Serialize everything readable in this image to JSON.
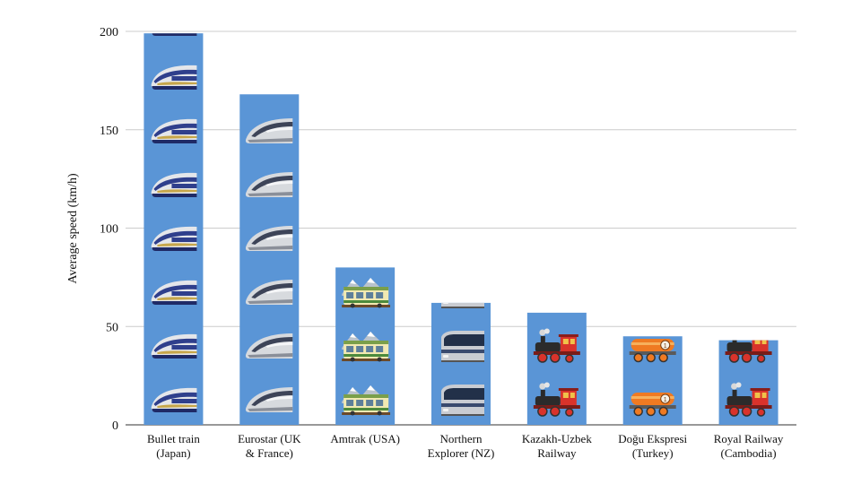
{
  "chart_data": {
    "type": "bar",
    "title": "",
    "xlabel": "",
    "ylabel": "Average speed (km/h)",
    "ylim": [
      0,
      200
    ],
    "yticks": [
      0,
      50,
      100,
      150,
      200
    ],
    "grid": true,
    "bar_color": "#5A95D6",
    "categories": [
      [
        "Bullet train",
        "(Japan)"
      ],
      [
        "Eurostar (UK",
        "& France)"
      ],
      [
        "Amtrak (USA)"
      ],
      [
        "Northern",
        "Explorer (NZ)"
      ],
      [
        "Kazakh-Uzbek",
        "Railway"
      ],
      [
        "Doğu Ekspresi",
        "(Turkey)"
      ],
      [
        "Royal Railway",
        "(Cambodia)"
      ]
    ],
    "values": [
      199,
      168,
      80,
      62,
      57,
      45,
      43
    ],
    "icons": [
      "bullet-train-icon",
      "high-speed-train-icon",
      "mountain-railway-icon",
      "light-rail-icon",
      "steam-locomotive-icon",
      "tank-locomotive-icon",
      "steam-locomotive-icon"
    ]
  }
}
